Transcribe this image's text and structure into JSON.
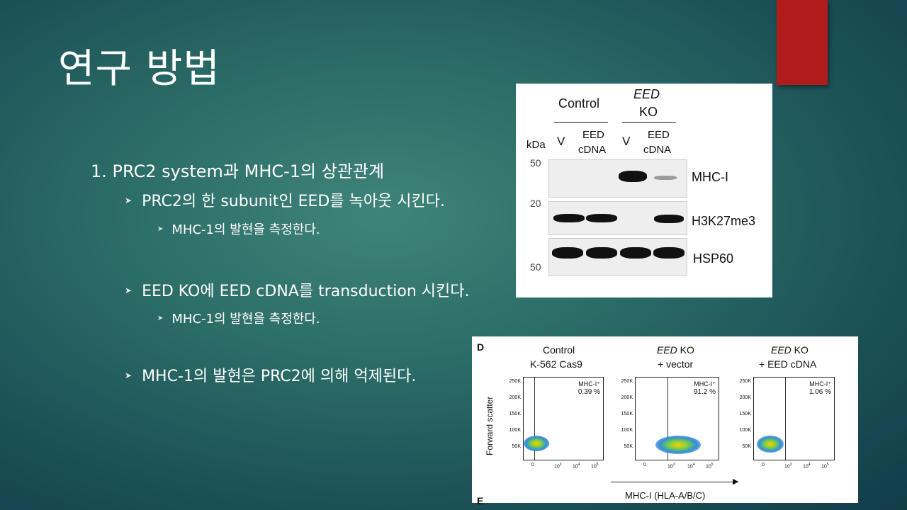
{
  "slide": {
    "title": "연구 방법",
    "bullets": [
      {
        "level": 1,
        "text": "1. PRC2 system과 MHC-1의 상관관계"
      },
      {
        "level": 2,
        "text": "PRC2의 한 subunit인 EED를 녹아웃 시킨다."
      },
      {
        "level": 3,
        "text": "MHC-1의 발현을 측정한다."
      },
      {
        "level": 2,
        "text": "EED KO에 EED cDNA를 transduction 시킨다."
      },
      {
        "level": 3,
        "text": "MHC-1의 발현을 측정한다."
      },
      {
        "level": 2,
        "text": "MHC-1의 발현은 PRC2에 의해 억제된다."
      }
    ],
    "accent_color": "#b01b1b"
  },
  "western_blot": {
    "group_control": "Control",
    "group_eed_ko_1": "EED",
    "group_eed_ko_2": "KO",
    "kda_label": "kDa",
    "lane_v1": "V",
    "lane_eed1_a": "EED",
    "lane_eed1_b": "cDNA",
    "lane_v2": "V",
    "lane_eed2_a": "EED",
    "lane_eed2_b": "cDNA",
    "marker_50_top": "50",
    "marker_20": "20",
    "marker_50_bottom": "50",
    "label_mhc": "MHC-I",
    "label_h3k27": "H3K27me3",
    "label_hsp60": "HSP60"
  },
  "flow_cytometry": {
    "panel_letter": "D",
    "panel_letter_next": "E",
    "y_axis_label": "Forward scatter",
    "x_axis_label": "MHC-I (HLA-A/B/C)",
    "y_ticks": [
      "250K",
      "200K",
      "150K",
      "100K",
      "50K"
    ],
    "x_ticks": [
      "0",
      "10",
      "10",
      "10",
      "10"
    ],
    "x_tick_exponents": [
      "",
      "3",
      "4",
      "5",
      ""
    ],
    "gate_label": "MHC-I⁺",
    "panels": [
      {
        "title_1": "Control",
        "title_2": "K-562 Cas9",
        "percent": "0.39 %"
      },
      {
        "title_1_em": "EED",
        "title_1_rest": " KO",
        "title_2": "+ vector",
        "percent": "91.2 %"
      },
      {
        "title_1_em": "EED",
        "title_1_rest": " KO",
        "title_2": "+ EED cDNA",
        "percent": "1.06 %"
      }
    ]
  }
}
